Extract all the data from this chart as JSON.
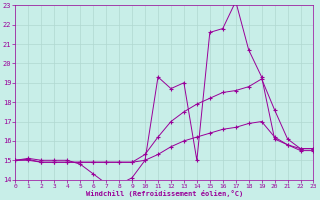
{
  "xlabel": "Windchill (Refroidissement éolien,°C)",
  "xlim": [
    0,
    23
  ],
  "ylim": [
    14,
    23
  ],
  "yticks": [
    14,
    15,
    16,
    17,
    18,
    19,
    20,
    21,
    22,
    23
  ],
  "xticks": [
    0,
    1,
    2,
    3,
    4,
    5,
    6,
    7,
    8,
    9,
    10,
    11,
    12,
    13,
    14,
    15,
    16,
    17,
    18,
    19,
    20,
    21,
    22,
    23
  ],
  "background_color": "#c8eee8",
  "grid_color": "#b0d8d0",
  "line_color": "#990099",
  "lines": [
    {
      "x": [
        0,
        1,
        2,
        3,
        4,
        5,
        6,
        7,
        8,
        9,
        10,
        11,
        12,
        13,
        14,
        15,
        16,
        17,
        18,
        19,
        20,
        21,
        22,
        23
      ],
      "y": [
        15.0,
        15.1,
        15.0,
        15.0,
        15.0,
        14.8,
        14.3,
        13.8,
        13.75,
        14.1,
        15.0,
        19.3,
        18.7,
        19.0,
        15.0,
        21.6,
        21.8,
        23.2,
        20.7,
        19.3,
        16.1,
        15.8,
        15.5,
        15.5
      ]
    },
    {
      "x": [
        0,
        1,
        2,
        3,
        4,
        5,
        6,
        7,
        8,
        9,
        10,
        11,
        12,
        13,
        14,
        15,
        16,
        17,
        18,
        19,
        20,
        21,
        22,
        23
      ],
      "y": [
        15.0,
        15.05,
        14.9,
        14.9,
        14.9,
        14.9,
        14.9,
        14.9,
        14.9,
        14.9,
        15.3,
        16.2,
        17.0,
        17.5,
        17.9,
        18.2,
        18.5,
        18.6,
        18.8,
        19.2,
        17.6,
        16.1,
        15.6,
        15.6
      ]
    },
    {
      "x": [
        0,
        1,
        2,
        3,
        4,
        5,
        6,
        7,
        8,
        9,
        10,
        11,
        12,
        13,
        14,
        15,
        16,
        17,
        18,
        19,
        20,
        21,
        22,
        23
      ],
      "y": [
        15.0,
        15.0,
        14.9,
        14.9,
        14.9,
        14.9,
        14.9,
        14.9,
        14.9,
        14.9,
        15.0,
        15.3,
        15.7,
        16.0,
        16.2,
        16.4,
        16.6,
        16.7,
        16.9,
        17.0,
        16.2,
        15.8,
        15.6,
        15.6
      ]
    }
  ]
}
